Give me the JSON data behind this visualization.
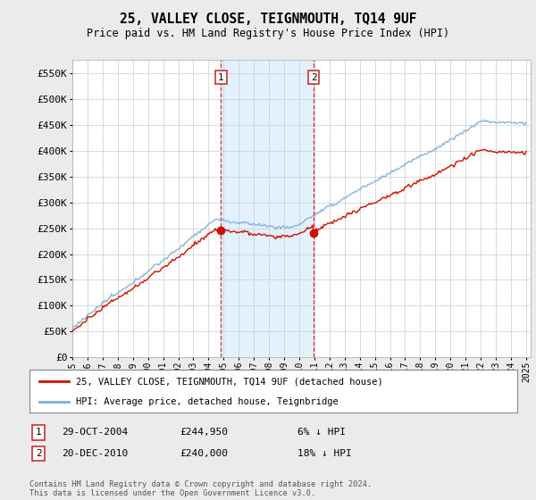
{
  "title": "25, VALLEY CLOSE, TEIGNMOUTH, TQ14 9UF",
  "subtitle": "Price paid vs. HM Land Registry's House Price Index (HPI)",
  "ylabel_ticks": [
    "£0",
    "£50K",
    "£100K",
    "£150K",
    "£200K",
    "£250K",
    "£300K",
    "£350K",
    "£400K",
    "£450K",
    "£500K",
    "£550K"
  ],
  "ytick_values": [
    0,
    50000,
    100000,
    150000,
    200000,
    250000,
    300000,
    350000,
    400000,
    450000,
    500000,
    550000
  ],
  "ylim": [
    0,
    575000
  ],
  "hpi_color": "#7aadd4",
  "price_color": "#cc1100",
  "legend_label_price": "25, VALLEY CLOSE, TEIGNMOUTH, TQ14 9UF (detached house)",
  "legend_label_hpi": "HPI: Average price, detached house, Teignbridge",
  "transaction1_date": "29-OCT-2004",
  "transaction1_price": "£244,950",
  "transaction1_note": "6% ↓ HPI",
  "transaction2_date": "20-DEC-2010",
  "transaction2_price": "£240,000",
  "transaction2_note": "18% ↓ HPI",
  "footer": "Contains HM Land Registry data © Crown copyright and database right 2024.\nThis data is licensed under the Open Government Licence v3.0.",
  "shade_color": "#ddeeff",
  "vline_color": "#cc3333",
  "background_color": "#ebebeb",
  "plot_bg": "#ffffff",
  "grid_color": "#cccccc",
  "t1_year": 2004.83,
  "t2_year": 2010.96,
  "price_t1": 244950,
  "price_t2": 240000,
  "start_year": 1995,
  "end_year": 2025
}
